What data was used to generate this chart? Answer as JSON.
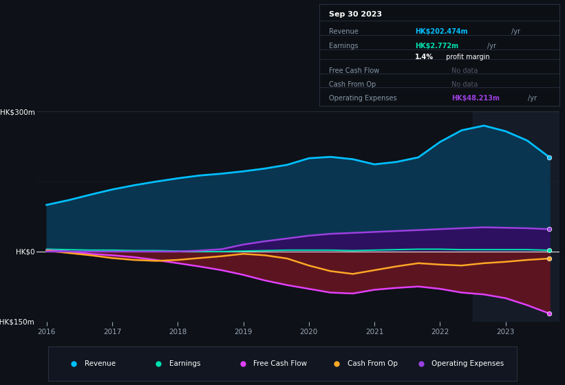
{
  "bg_color": "#0e1117",
  "plot_bg_color": "#0e1117",
  "years": [
    2016.0,
    2016.33,
    2016.67,
    2017.0,
    2017.33,
    2017.67,
    2018.0,
    2018.33,
    2018.67,
    2019.0,
    2019.33,
    2019.67,
    2020.0,
    2020.33,
    2020.67,
    2021.0,
    2021.33,
    2021.67,
    2022.0,
    2022.33,
    2022.67,
    2023.0,
    2023.33,
    2023.67
  ],
  "revenue": [
    100,
    110,
    122,
    133,
    142,
    150,
    157,
    163,
    167,
    172,
    178,
    186,
    200,
    203,
    198,
    187,
    192,
    202,
    235,
    260,
    270,
    258,
    238,
    202
  ],
  "earnings": [
    5,
    4,
    3,
    3,
    2,
    2,
    1,
    0,
    0,
    1,
    2,
    3,
    3,
    3,
    2,
    3,
    4,
    5,
    5,
    4,
    4,
    4,
    4,
    2.7
  ],
  "fcf": [
    3,
    0,
    -5,
    -8,
    -12,
    -18,
    -25,
    -32,
    -40,
    -50,
    -62,
    -72,
    -80,
    -88,
    -90,
    -82,
    -78,
    -75,
    -80,
    -88,
    -92,
    -100,
    -115,
    -133
  ],
  "cashfromop": [
    2,
    -3,
    -8,
    -14,
    -18,
    -20,
    -18,
    -14,
    -10,
    -5,
    -8,
    -15,
    -30,
    -42,
    -48,
    -40,
    -32,
    -25,
    -28,
    -30,
    -25,
    -22,
    -18,
    -15
  ],
  "opex": [
    0,
    0,
    0,
    0,
    0,
    0,
    0,
    2,
    5,
    15,
    22,
    28,
    34,
    38,
    40,
    42,
    44,
    46,
    48,
    50,
    52,
    51,
    50,
    48
  ],
  "revenue_color": "#00bfff",
  "earnings_color": "#00e0b0",
  "fcf_color": "#e040fb",
  "cashfromop_color": "#ffa726",
  "opex_color": "#9c40e0",
  "revenue_fill": "#0a3550",
  "opex_fill": "#2d1060",
  "negative_fill": "#5c1520",
  "shade_start": 2022.5,
  "shade_color": "#1a2535",
  "shade_alpha": 0.6,
  "ylim": [
    -150,
    300
  ],
  "xticks": [
    2016,
    2017,
    2018,
    2019,
    2020,
    2021,
    2022,
    2023
  ],
  "legend_items": [
    {
      "label": "Revenue",
      "color": "#00bfff"
    },
    {
      "label": "Earnings",
      "color": "#00e0b0"
    },
    {
      "label": "Free Cash Flow",
      "color": "#e040fb"
    },
    {
      "label": "Cash From Op",
      "color": "#ffa726"
    },
    {
      "label": "Operating Expenses",
      "color": "#9c40e0"
    }
  ]
}
